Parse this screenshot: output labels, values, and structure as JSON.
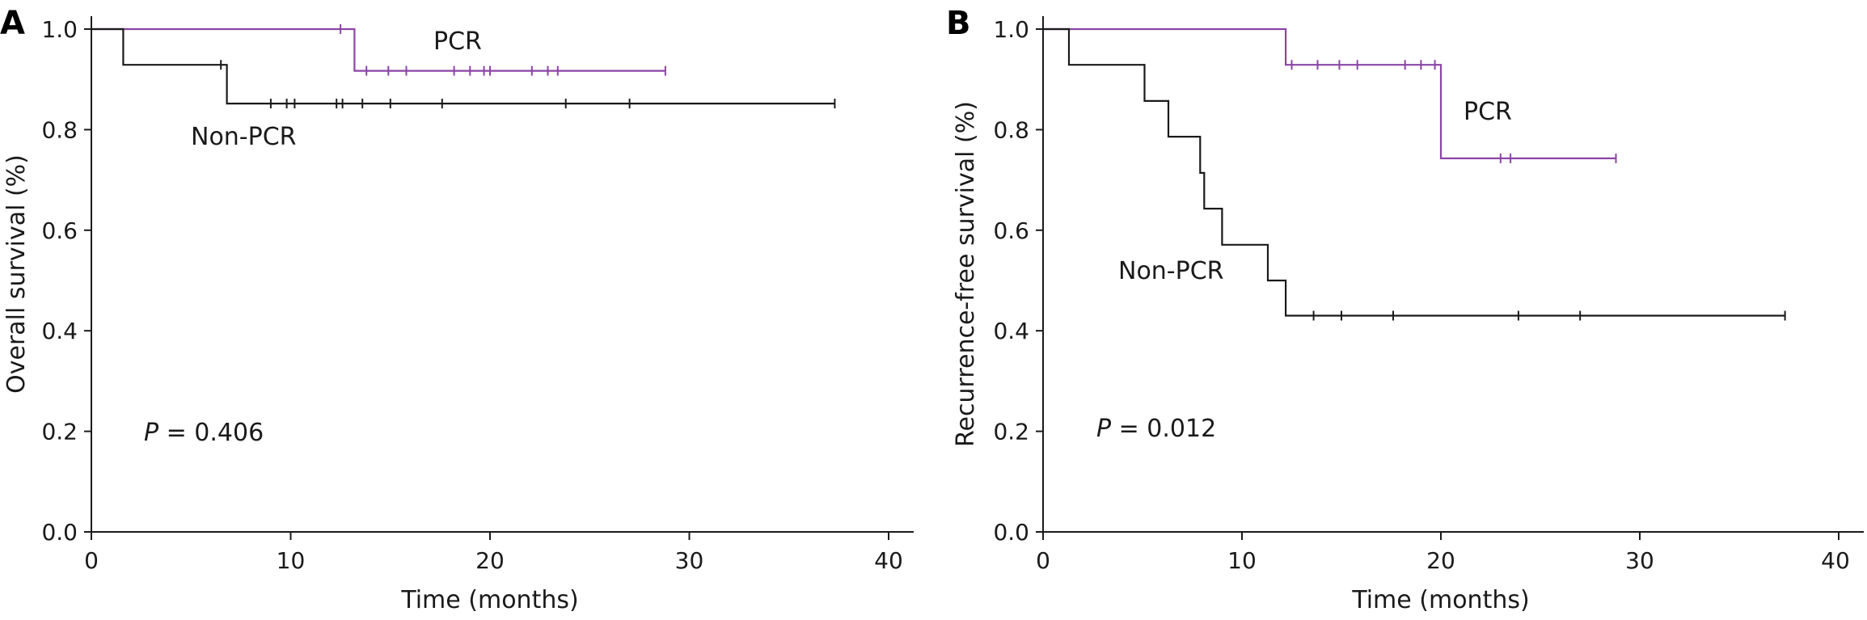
{
  "colors": {
    "PCR": "#8b45a6",
    "Non-PCR": "#1a1a1a",
    "axis": "#1a1a1a"
  },
  "chart_data": [
    {
      "type": "line",
      "panel_label": "A",
      "xlabel": "Time (months)",
      "ylabel": "Overall survival (%)",
      "xlim": [
        0,
        40
      ],
      "ylim": [
        0.0,
        1.0
      ],
      "xticks": [
        "0",
        "10",
        "20",
        "30",
        "40"
      ],
      "yticks": [
        "0.0",
        "0.2",
        "0.4",
        "0.6",
        "0.8",
        "1.0"
      ],
      "grid": false,
      "series": [
        {
          "name": "PCR",
          "color_key": "PCR",
          "steps": [
            [
              0,
              1.0
            ],
            [
              13.2,
              1.0
            ],
            [
              13.2,
              0.917
            ],
            [
              28.8,
              0.917
            ]
          ],
          "censored": [
            [
              12.5,
              1.0
            ],
            [
              13.8,
              0.917
            ],
            [
              14.9,
              0.917
            ],
            [
              15.8,
              0.917
            ],
            [
              18.2,
              0.917
            ],
            [
              19.0,
              0.917
            ],
            [
              19.7,
              0.917
            ],
            [
              20.0,
              0.917
            ],
            [
              22.1,
              0.917
            ],
            [
              22.9,
              0.917
            ],
            [
              23.4,
              0.917
            ],
            [
              28.8,
              0.917
            ]
          ]
        },
        {
          "name": "Non-PCR",
          "color_key": "Non-PCR",
          "steps": [
            [
              0,
              1.0
            ],
            [
              1.6,
              1.0
            ],
            [
              1.6,
              0.929
            ],
            [
              6.8,
              0.929
            ],
            [
              6.8,
              0.852
            ],
            [
              37.3,
              0.852
            ]
          ],
          "censored": [
            [
              6.5,
              0.929
            ],
            [
              9.0,
              0.852
            ],
            [
              9.8,
              0.852
            ],
            [
              10.2,
              0.852
            ],
            [
              12.3,
              0.852
            ],
            [
              12.6,
              0.852
            ],
            [
              13.6,
              0.852
            ],
            [
              15.0,
              0.852
            ],
            [
              17.6,
              0.852
            ],
            [
              23.8,
              0.852
            ],
            [
              27.0,
              0.852
            ],
            [
              37.3,
              0.852
            ]
          ]
        }
      ],
      "annotations": [
        {
          "text": "PCR",
          "series": "PCR"
        },
        {
          "text": "Non-PCR",
          "series": "Non-PCR"
        }
      ],
      "p_value": {
        "symbol": "P",
        "text": " = 0.406"
      }
    },
    {
      "type": "line",
      "panel_label": "B",
      "xlabel": "Time (months)",
      "ylabel": "Recurrence-free survival (%)",
      "xlim": [
        0,
        40
      ],
      "ylim": [
        0.0,
        1.0
      ],
      "xticks": [
        "0",
        "10",
        "20",
        "30",
        "40"
      ],
      "yticks": [
        "0.0",
        "0.2",
        "0.4",
        "0.6",
        "0.8",
        "1.0"
      ],
      "grid": false,
      "series": [
        {
          "name": "PCR",
          "color_key": "PCR",
          "steps": [
            [
              0,
              1.0
            ],
            [
              12.2,
              1.0
            ],
            [
              12.2,
              0.929
            ],
            [
              20.0,
              0.929
            ],
            [
              20.0,
              0.743
            ],
            [
              28.8,
              0.743
            ]
          ],
          "censored": [
            [
              12.5,
              0.929
            ],
            [
              13.8,
              0.929
            ],
            [
              14.9,
              0.929
            ],
            [
              15.8,
              0.929
            ],
            [
              18.2,
              0.929
            ],
            [
              19.0,
              0.929
            ],
            [
              19.7,
              0.929
            ],
            [
              23.0,
              0.743
            ],
            [
              23.5,
              0.743
            ],
            [
              28.8,
              0.743
            ]
          ]
        },
        {
          "name": "Non-PCR",
          "color_key": "Non-PCR",
          "steps": [
            [
              0,
              1.0
            ],
            [
              1.3,
              1.0
            ],
            [
              1.3,
              0.929
            ],
            [
              5.1,
              0.929
            ],
            [
              5.1,
              0.857
            ],
            [
              6.3,
              0.857
            ],
            [
              6.3,
              0.786
            ],
            [
              7.9,
              0.786
            ],
            [
              7.9,
              0.714
            ],
            [
              8.1,
              0.714
            ],
            [
              8.1,
              0.643
            ],
            [
              9.0,
              0.643
            ],
            [
              9.0,
              0.571
            ],
            [
              11.3,
              0.571
            ],
            [
              11.3,
              0.5
            ],
            [
              12.2,
              0.5
            ],
            [
              12.2,
              0.43
            ],
            [
              37.3,
              0.43
            ]
          ],
          "censored": [
            [
              13.6,
              0.43
            ],
            [
              15.0,
              0.43
            ],
            [
              17.6,
              0.43
            ],
            [
              23.9,
              0.43
            ],
            [
              27.0,
              0.43
            ],
            [
              37.3,
              0.43
            ]
          ]
        }
      ],
      "annotations": [
        {
          "text": "PCR",
          "series": "PCR"
        },
        {
          "text": "Non-PCR",
          "series": "Non-PCR"
        }
      ],
      "p_value": {
        "symbol": "P",
        "text": " = 0.012"
      }
    }
  ]
}
